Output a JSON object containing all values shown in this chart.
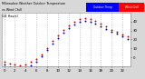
{
  "bg_color": "#d8d8d8",
  "plot_bg": "#ffffff",
  "grid_color": "#aaaaaa",
  "ylim": [
    -10,
    50
  ],
  "y_ticks": [
    0,
    10,
    20,
    30,
    40
  ],
  "color_temp": "#cc0000",
  "color_chill": "#0000cc",
  "legend_blue": "#0000ff",
  "legend_red": "#ff0000",
  "temp_data": [
    [
      0,
      -5
    ],
    [
      1,
      -7
    ],
    [
      2,
      -8
    ],
    [
      3,
      -9
    ],
    [
      4,
      -8
    ],
    [
      5,
      -5
    ],
    [
      6,
      -2
    ],
    [
      7,
      3
    ],
    [
      8,
      10
    ],
    [
      9,
      18
    ],
    [
      10,
      25
    ],
    [
      11,
      31
    ],
    [
      12,
      36
    ],
    [
      13,
      40
    ],
    [
      14,
      43
    ],
    [
      15,
      44
    ],
    [
      16,
      43
    ],
    [
      17,
      41
    ],
    [
      18,
      38
    ],
    [
      19,
      35
    ],
    [
      20,
      31
    ],
    [
      21,
      29
    ],
    [
      22,
      26
    ],
    [
      23,
      24
    ]
  ],
  "windchill_data": [
    [
      0,
      -8
    ],
    [
      1,
      -11
    ],
    [
      2,
      -12
    ],
    [
      3,
      -13
    ],
    [
      4,
      -12
    ],
    [
      5,
      -9
    ],
    [
      6,
      -5
    ],
    [
      7,
      1
    ],
    [
      8,
      8
    ],
    [
      9,
      15
    ],
    [
      10,
      22
    ],
    [
      11,
      28
    ],
    [
      12,
      33
    ],
    [
      13,
      37
    ],
    [
      14,
      40
    ],
    [
      15,
      41
    ],
    [
      16,
      40
    ],
    [
      17,
      38
    ],
    [
      18,
      35
    ],
    [
      19,
      32
    ],
    [
      20,
      29
    ],
    [
      21,
      27
    ],
    [
      22,
      24
    ],
    [
      23,
      21
    ]
  ]
}
